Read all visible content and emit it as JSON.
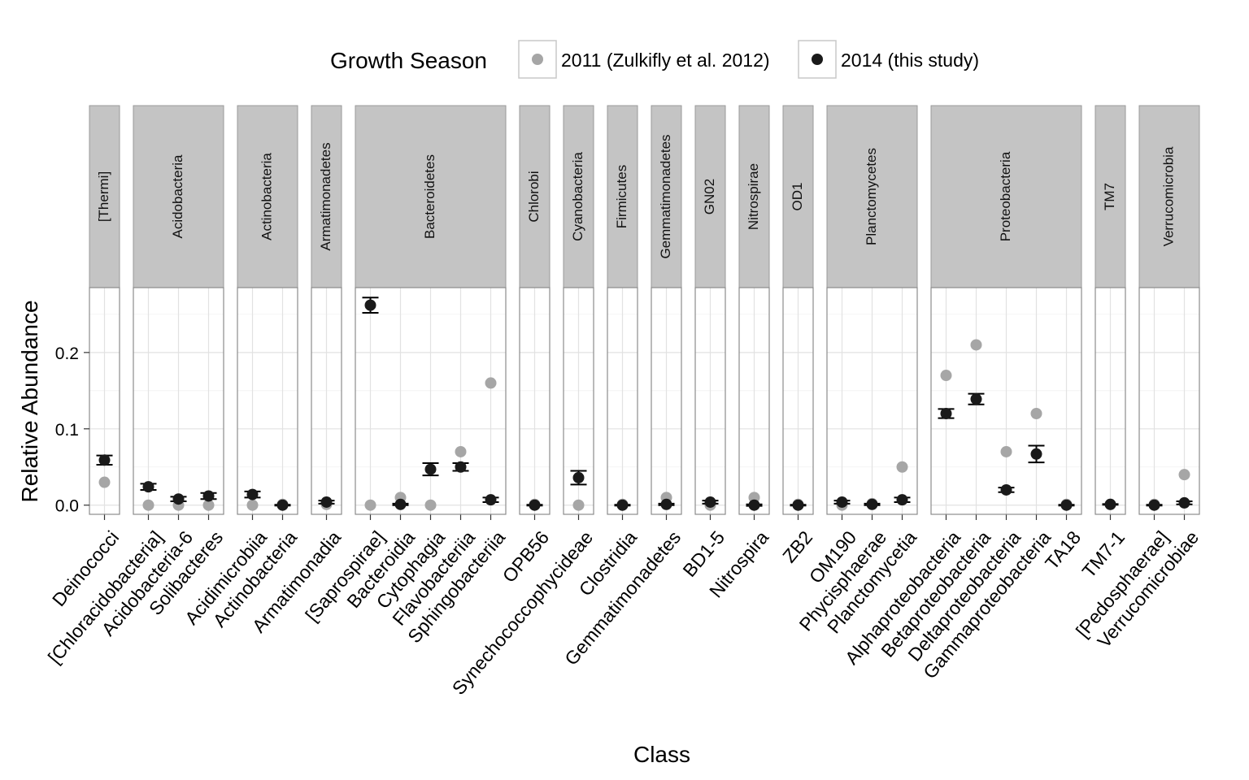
{
  "legend": {
    "title": "Growth Season",
    "items": [
      {
        "label": "2011 (Zulkifly et al. 2012)",
        "color": "#a6a6a6"
      },
      {
        "label": "2014 (this study)",
        "color": "#1a1a1a"
      }
    ]
  },
  "chart_data": {
    "type": "scatter",
    "xlabel": "Class",
    "ylabel": "Relative Abundance",
    "ylim": [
      -0.012,
      0.285
    ],
    "yticks": [
      0.0,
      0.1,
      0.2
    ],
    "ytick_labels": [
      "0.0",
      "0.1",
      "0.2"
    ],
    "grid": true,
    "legend_position": "top",
    "series": [
      {
        "name": "2011 (Zulkifly et al. 2012)",
        "color": "#a6a6a6"
      },
      {
        "name": "2014 (this study)",
        "color": "#1a1a1a"
      }
    ],
    "facets": [
      {
        "name": "[Thermi]",
        "classes": [
          {
            "name": "Deinococci",
            "v2011": 0.03,
            "v2014": 0.059,
            "err": 0.006
          }
        ]
      },
      {
        "name": "Acidobacteria",
        "classes": [
          {
            "name": "[Chloracidobacteria]",
            "v2011": 0.0,
            "v2014": 0.024,
            "err": 0.004
          },
          {
            "name": "Acidobacteria-6",
            "v2011": 0.0,
            "v2014": 0.008,
            "err": 0.003
          },
          {
            "name": "Solibacteres",
            "v2011": 0.0,
            "v2014": 0.012,
            "err": 0.004
          }
        ]
      },
      {
        "name": "Actinobacteria",
        "classes": [
          {
            "name": "Acidimicrobiia",
            "v2011": 0.0,
            "v2014": 0.014,
            "err": 0.004
          },
          {
            "name": "Actinobacteria",
            "v2011": 0.001,
            "v2014": 0.0,
            "err": 0.0005
          }
        ]
      },
      {
        "name": "Armatimonadetes",
        "classes": [
          {
            "name": "Armatimonadia",
            "v2011": 0.001,
            "v2014": 0.004,
            "err": 0.002
          }
        ]
      },
      {
        "name": "Bacteroidetes",
        "classes": [
          {
            "name": "[Saprospirae]",
            "v2011": 0.0,
            "v2014": 0.262,
            "err": 0.01
          },
          {
            "name": "Bacteroidia",
            "v2011": 0.01,
            "v2014": 0.001,
            "err": 0.001
          },
          {
            "name": "Cytophagia",
            "v2011": 0.0,
            "v2014": 0.047,
            "err": 0.008
          },
          {
            "name": "Flavobacteriia",
            "v2011": 0.07,
            "v2014": 0.05,
            "err": 0.005
          },
          {
            "name": "Sphingobacteriia",
            "v2011": 0.16,
            "v2014": 0.007,
            "err": 0.003
          }
        ]
      },
      {
        "name": "Chlorobi",
        "classes": [
          {
            "name": "OPB56",
            "v2011": 0.001,
            "v2014": 0.0,
            "err": 0.0005
          }
        ]
      },
      {
        "name": "Cyanobacteria",
        "classes": [
          {
            "name": "Synechococcophycideae",
            "v2011": 0.0,
            "v2014": 0.036,
            "err": 0.009
          }
        ]
      },
      {
        "name": "Firmicutes",
        "classes": [
          {
            "name": "Clostridia",
            "v2011": 0.001,
            "v2014": 0.0,
            "err": 0.0005
          }
        ]
      },
      {
        "name": "Gemmatimonadetes",
        "classes": [
          {
            "name": "Gemmatimonadetes",
            "v2011": 0.01,
            "v2014": 0.001,
            "err": 0.001
          }
        ]
      },
      {
        "name": "GN02",
        "classes": [
          {
            "name": "BD1-5",
            "v2011": 0.0,
            "v2014": 0.004,
            "err": 0.002
          }
        ]
      },
      {
        "name": "Nitrospirae",
        "classes": [
          {
            "name": "Nitrospira",
            "v2011": 0.01,
            "v2014": 0.0,
            "err": 0.001
          }
        ]
      },
      {
        "name": "OD1",
        "classes": [
          {
            "name": "ZB2",
            "v2011": 0.001,
            "v2014": 0.0,
            "err": 0.0005
          }
        ]
      },
      {
        "name": "Planctomycetes",
        "classes": [
          {
            "name": "OM190",
            "v2011": 0.0,
            "v2014": 0.004,
            "err": 0.002
          },
          {
            "name": "Phycisphaerae",
            "v2011": 0.002,
            "v2014": 0.001,
            "err": 0.001
          },
          {
            "name": "Planctomycetia",
            "v2011": 0.05,
            "v2014": 0.007,
            "err": 0.003
          }
        ]
      },
      {
        "name": "Proteobacteria",
        "classes": [
          {
            "name": "Alphaproteobacteria",
            "v2011": 0.17,
            "v2014": 0.12,
            "err": 0.006
          },
          {
            "name": "Betaproteobacteria",
            "v2011": 0.21,
            "v2014": 0.139,
            "err": 0.007
          },
          {
            "name": "Deltaproteobacteria",
            "v2011": 0.07,
            "v2014": 0.02,
            "err": 0.003
          },
          {
            "name": "Gammaproteobacteria",
            "v2011": 0.12,
            "v2014": 0.067,
            "err": 0.011
          },
          {
            "name": "TA18",
            "v2011": 0.001,
            "v2014": 0.0,
            "err": 0.0005
          }
        ]
      },
      {
        "name": "TM7",
        "classes": [
          {
            "name": "TM7-1",
            "v2011": 0.001,
            "v2014": 0.001,
            "err": 0.0005
          }
        ]
      },
      {
        "name": "Verrucomicrobia",
        "classes": [
          {
            "name": "[Pedosphaerae]",
            "v2011": 0.001,
            "v2014": 0.0,
            "err": 0.0005
          },
          {
            "name": "Verrucomicrobiae",
            "v2011": 0.04,
            "v2014": 0.003,
            "err": 0.002
          }
        ]
      }
    ]
  }
}
